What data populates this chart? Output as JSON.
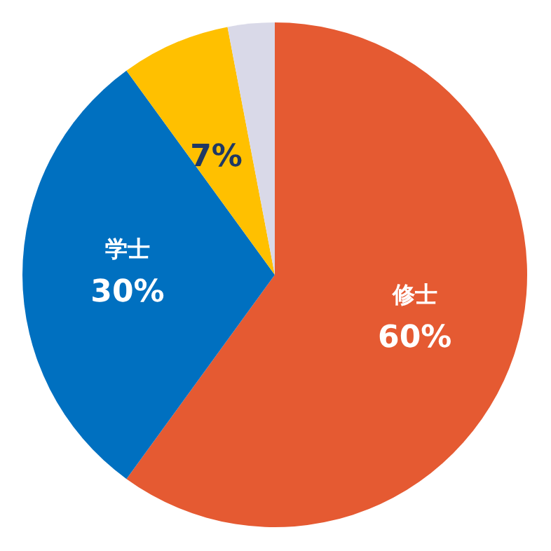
{
  "chart_data": {
    "type": "pie",
    "categories": [
      "修士",
      "学士",
      null,
      null
    ],
    "values": [
      60,
      30,
      7,
      3
    ],
    "colors": [
      "#e55a32",
      "#0070c0",
      "#ffc000",
      "#d9d9e8"
    ],
    "value_labels": [
      "60%",
      "30%",
      "7%",
      null
    ],
    "legend": false
  }
}
